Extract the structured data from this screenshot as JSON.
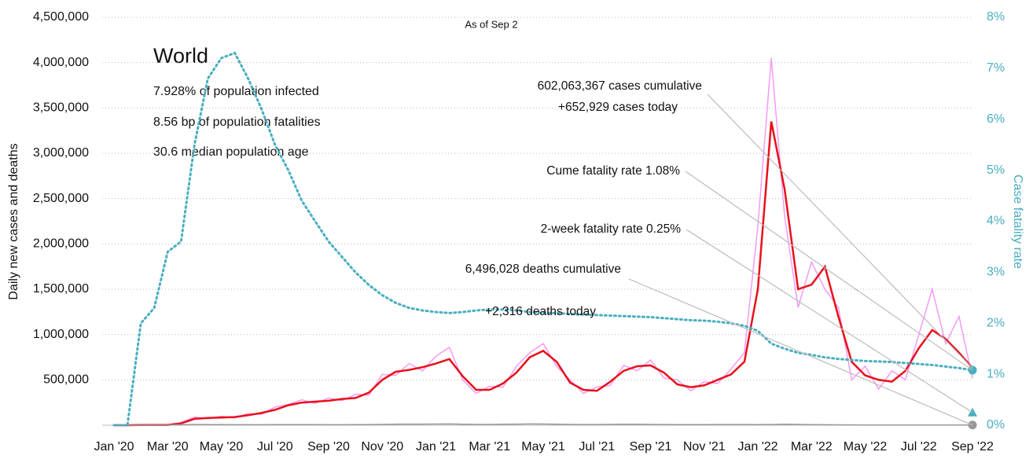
{
  "chart_data": {
    "type": "line",
    "subtitle": "As of Sep 2",
    "ylabel": "Daily new cases and deaths",
    "y2label": "Case fatality rate",
    "panel": {
      "title": "World",
      "lines": [
        "7.928% of population infected",
        "8.56 bp of population fatalities",
        "30.6 median population age"
      ]
    },
    "annotations": {
      "cases": [
        "602,063,367 cases cumulative",
        "+652,929 cases today"
      ],
      "cume_rate": "Cume fatality rate 1.08%",
      "two_week_rate": "2-week fatality rate 0.25%",
      "deaths": [
        "6,496,028 deaths cumulative",
        "+2,316 deaths today"
      ]
    },
    "two_week_rate_value": 0.25,
    "two_week_rate_color": "#4aaec0",
    "categories": [
      "Jan '20",
      null,
      null,
      null,
      "Mar '20",
      null,
      null,
      null,
      "May '20",
      null,
      null,
      null,
      "Jul '20",
      null,
      null,
      null,
      "Sep '20",
      null,
      null,
      null,
      "Nov '20",
      null,
      null,
      null,
      "Jan '21",
      null,
      null,
      null,
      "Mar '21",
      null,
      null,
      null,
      "May '21",
      null,
      null,
      null,
      "Jul '21",
      null,
      null,
      null,
      "Sep '21",
      null,
      null,
      null,
      "Nov '21",
      null,
      null,
      null,
      "Jan '22",
      null,
      null,
      null,
      "Mar '22",
      null,
      null,
      null,
      "May '22",
      null,
      null,
      null,
      "Jul '22",
      null,
      null,
      null,
      "Sep '22"
    ],
    "series": [
      {
        "color": "#f59af5",
        "style": "solid",
        "width": 1.5,
        "values": [
          0,
          0,
          3000,
          3000,
          5000,
          30000,
          90000,
          70000,
          100000,
          80000,
          130000,
          120000,
          200000,
          230000,
          280000,
          240000,
          300000,
          270000,
          340000,
          330000,
          560000,
          550000,
          680000,
          600000,
          760000,
          860000,
          500000,
          350000,
          430000,
          420000,
          650000,
          800000,
          900000,
          650000,
          500000,
          350000,
          420000,
          440000,
          660000,
          600000,
          720000,
          520000,
          500000,
          380000,
          480000,
          460000,
          620000,
          800000,
          2200000,
          4050000,
          2300000,
          1300000,
          1800000,
          1500000,
          1300000,
          500000,
          650000,
          400000,
          600000,
          500000,
          1000000,
          1500000,
          900000,
          1200000,
          520000
        ]
      },
      {
        "color": "#e8101a",
        "style": "solid",
        "width": 2.5,
        "values": [
          0,
          0,
          2000,
          2000,
          2000,
          20000,
          70000,
          80000,
          85000,
          90000,
          110000,
          135000,
          170000,
          220000,
          250000,
          260000,
          270000,
          290000,
          300000,
          360000,
          500000,
          590000,
          610000,
          640000,
          680000,
          730000,
          540000,
          390000,
          390000,
          460000,
          580000,
          750000,
          820000,
          700000,
          470000,
          390000,
          380000,
          480000,
          600000,
          650000,
          660000,
          580000,
          450000,
          420000,
          440000,
          500000,
          560000,
          700000,
          1500000,
          3350000,
          2600000,
          1500000,
          1550000,
          1750000,
          1200000,
          700000,
          550000,
          500000,
          480000,
          600000,
          850000,
          1050000,
          950000,
          800000,
          630000
        ]
      },
      {
        "color": "#999999",
        "style": "solid",
        "width": 1.5,
        "end_marker": true,
        "values": [
          0,
          0,
          100,
          100,
          500,
          5000,
          8000,
          7000,
          6000,
          5000,
          5000,
          5000,
          6000,
          6000,
          6000,
          6000,
          5500,
          5500,
          6000,
          7000,
          9000,
          11000,
          12000,
          12500,
          13000,
          14000,
          11000,
          9000,
          8500,
          10000,
          12000,
          13500,
          13000,
          11000,
          9000,
          8000,
          8000,
          9000,
          10000,
          10000,
          9000,
          7500,
          7000,
          7000,
          7000,
          7500,
          7500,
          7500,
          7000,
          8000,
          10000,
          9000,
          7000,
          5000,
          4000,
          3500,
          3000,
          2500,
          2000,
          2000,
          2000,
          2000,
          2000,
          2000,
          2000
        ]
      },
      {
        "color": "#4aaec0",
        "style": "dotted",
        "width": 3,
        "axis": "y2",
        "end_marker": true,
        "values": [
          0,
          0,
          2.0,
          2.3,
          3.4,
          3.6,
          5.5,
          6.8,
          7.2,
          7.3,
          6.8,
          6.2,
          5.5,
          5.0,
          4.4,
          4.0,
          3.6,
          3.3,
          3.0,
          2.75,
          2.55,
          2.4,
          2.3,
          2.25,
          2.22,
          2.2,
          2.22,
          2.25,
          2.27,
          2.27,
          2.25,
          2.22,
          2.2,
          2.2,
          2.18,
          2.17,
          2.16,
          2.15,
          2.14,
          2.13,
          2.12,
          2.1,
          2.08,
          2.06,
          2.05,
          2.03,
          2.0,
          1.95,
          1.85,
          1.6,
          1.5,
          1.42,
          1.38,
          1.33,
          1.3,
          1.28,
          1.26,
          1.25,
          1.24,
          1.22,
          1.2,
          1.18,
          1.15,
          1.12,
          1.08
        ]
      }
    ],
    "ylim": [
      0,
      4500000
    ],
    "yticks": [
      {
        "value": 500000,
        "label": "500,000"
      },
      {
        "value": 1000000,
        "label": "1,000,000"
      },
      {
        "value": 1500000,
        "label": "1,500,000"
      },
      {
        "value": 2000000,
        "label": "2,000,000"
      },
      {
        "value": 2500000,
        "label": "2,500,000"
      },
      {
        "value": 3000000,
        "label": "3,000,000"
      },
      {
        "value": 3500000,
        "label": "3,500,000"
      },
      {
        "value": 4000000,
        "label": "4,000,000"
      },
      {
        "value": 4500000,
        "label": "4,500,000"
      }
    ],
    "y2lim": [
      0,
      8
    ],
    "y2ticks": [
      {
        "value": 0,
        "label": "0%"
      },
      {
        "value": 1,
        "label": "1%"
      },
      {
        "value": 2,
        "label": "2%"
      },
      {
        "value": 3,
        "label": "3%"
      },
      {
        "value": 4,
        "label": "4%"
      },
      {
        "value": 5,
        "label": "5%"
      },
      {
        "value": 6,
        "label": "6%"
      },
      {
        "value": 7,
        "label": "7%"
      },
      {
        "value": 8,
        "label": "8%"
      }
    ],
    "grid": true
  }
}
